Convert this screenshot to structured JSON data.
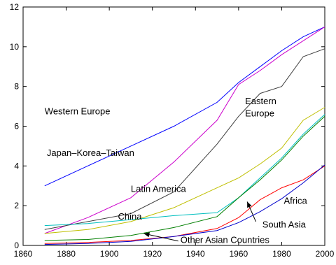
{
  "chart_data": {
    "type": "line",
    "title": "",
    "xlabel": "",
    "ylabel": "",
    "xlim": [
      1860,
      2000
    ],
    "ylim": [
      0,
      12
    ],
    "xticks": [
      "1860",
      "1880",
      "1900",
      "1920",
      "1940",
      "1960",
      "1980",
      "2000"
    ],
    "yticks": [
      "0",
      "2",
      "4",
      "6",
      "8",
      "10",
      "12"
    ],
    "grid": false,
    "legend": "none",
    "series": [
      {
        "name": "Western Europe",
        "color": "#0000ff",
        "x": [
          1870,
          1890,
          1910,
          1930,
          1950,
          1960,
          1970,
          1980,
          1990,
          2000
        ],
        "y": [
          3.0,
          4.0,
          5.0,
          6.0,
          7.2,
          8.2,
          9.0,
          9.8,
          10.5,
          11.0
        ]
      },
      {
        "name": "Japan–Korea–Taiwan",
        "color": "#cc00cc",
        "x": [
          1870,
          1890,
          1910,
          1930,
          1950,
          1960,
          1970,
          1980,
          1990,
          2000
        ],
        "y": [
          0.6,
          1.4,
          2.4,
          4.2,
          6.3,
          8.1,
          8.8,
          9.6,
          10.3,
          11.0
        ]
      },
      {
        "name": "Eastern Europe",
        "color": "#3f3f3f",
        "x": [
          1870,
          1890,
          1910,
          1930,
          1950,
          1960,
          1970,
          1980,
          1990,
          2000
        ],
        "y": [
          0.8,
          1.2,
          1.6,
          2.7,
          5.1,
          6.5,
          7.65,
          8.0,
          9.5,
          9.9
        ]
      },
      {
        "name": "Latin America",
        "color": "#bfbf00",
        "x": [
          1870,
          1890,
          1910,
          1930,
          1950,
          1960,
          1970,
          1980,
          1990,
          2000
        ],
        "y": [
          0.6,
          0.8,
          1.2,
          1.9,
          2.9,
          3.4,
          4.1,
          4.9,
          6.3,
          6.95
        ]
      },
      {
        "name": "China",
        "color": "#00bfbf",
        "x": [
          1870,
          1890,
          1910,
          1930,
          1950,
          1960,
          1970,
          1980,
          1990,
          2000
        ],
        "y": [
          1.0,
          1.1,
          1.3,
          1.5,
          1.65,
          2.4,
          3.4,
          4.4,
          5.6,
          6.6
        ]
      },
      {
        "name": "Other Asian Countries",
        "color": "#007f00",
        "x": [
          1870,
          1890,
          1910,
          1930,
          1950,
          1960,
          1970,
          1980,
          1990,
          2000
        ],
        "y": [
          0.25,
          0.3,
          0.5,
          0.9,
          1.45,
          2.4,
          3.3,
          4.3,
          5.5,
          6.5
        ]
      },
      {
        "name": "South Asia",
        "color": "#ff0000",
        "x": [
          1870,
          1890,
          1910,
          1930,
          1950,
          1960,
          1970,
          1980,
          1990,
          2000
        ],
        "y": [
          0.1,
          0.15,
          0.25,
          0.45,
          0.85,
          1.4,
          2.3,
          2.9,
          3.3,
          4.0
        ]
      },
      {
        "name": "Africa",
        "color": "#0000cc",
        "x": [
          1870,
          1890,
          1910,
          1930,
          1950,
          1960,
          1970,
          1980,
          1990,
          2000
        ],
        "y": [
          0.05,
          0.1,
          0.2,
          0.45,
          0.75,
          1.15,
          1.7,
          2.35,
          3.15,
          4.05
        ]
      }
    ],
    "annotations": [
      {
        "text": "Western Europe",
        "x": 1870,
        "y": 6.6
      },
      {
        "text": "Eastern",
        "x": 1963,
        "y": 7.1
      },
      {
        "text": "Europe",
        "x": 1963,
        "y": 6.5
      },
      {
        "text": "Japan–Korea–Taiwan",
        "x": 1871,
        "y": 4.5
      },
      {
        "text": "Latin America",
        "x": 1910,
        "y": 2.7
      },
      {
        "text": "China",
        "x": 1904,
        "y": 1.3
      },
      {
        "text": "Africa",
        "x": 1981,
        "y": 2.1
      },
      {
        "text": "South Asia",
        "x": 1971,
        "y": 0.9
      },
      {
        "text": "Other Asian Countries",
        "x": 1933,
        "y": 0.12
      }
    ],
    "arrows": [
      {
        "label": "Other Asian Countries",
        "from": [
          1932,
          0.22
        ],
        "to": [
          1916,
          0.6
        ]
      },
      {
        "label": "South Asia",
        "from": [
          1968,
          1.2
        ],
        "to": [
          1964,
          2.2
        ]
      }
    ]
  }
}
